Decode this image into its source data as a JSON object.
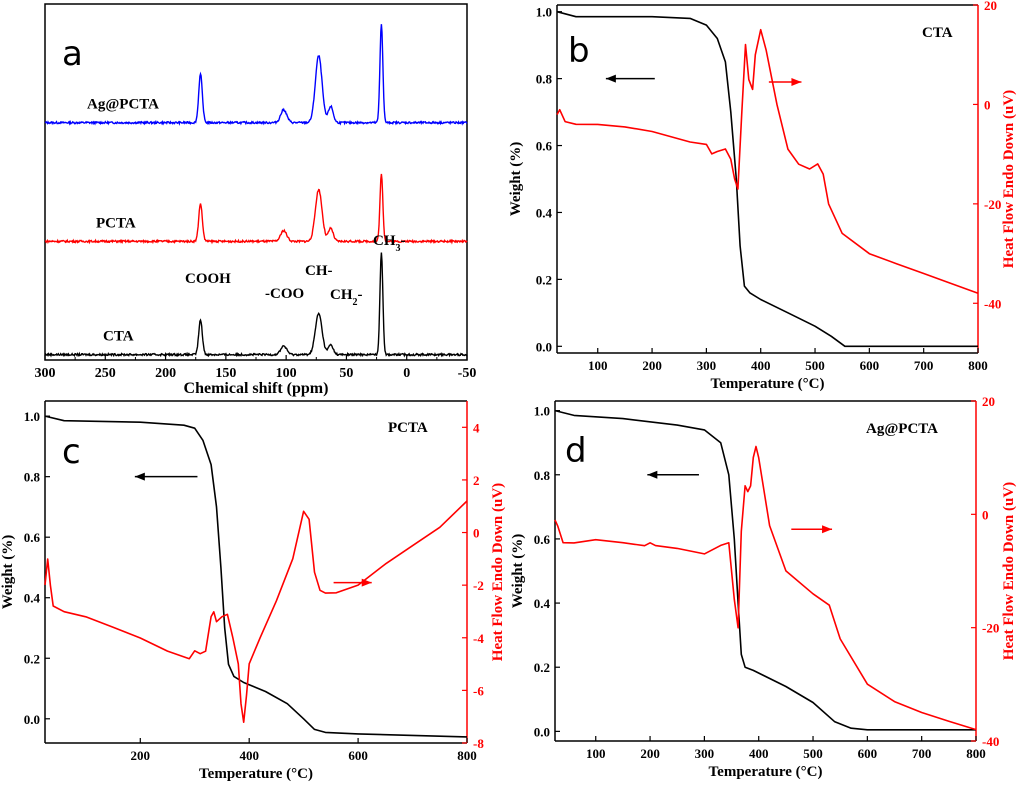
{
  "colors": {
    "black": "#000000",
    "red": "#ff0000",
    "blue": "#0000ff"
  },
  "chart_data": [
    {
      "id": "a",
      "type": "line",
      "title": "",
      "panel_letter": "a",
      "xlabel": "Chemical shift (ppm)",
      "ylabel": "",
      "xlim": [
        300,
        -50
      ],
      "x_reversed": true,
      "ylim": [
        0,
        3.3
      ],
      "xticks": [
        300,
        250,
        200,
        150,
        100,
        50,
        0,
        -50
      ],
      "tick_labels": [
        "300",
        "250",
        "200",
        "150",
        "100",
        "50",
        "0",
        "-50"
      ],
      "peaks_ppm": [
        171,
        102,
        73,
        63,
        21
      ],
      "series": [
        {
          "name": "Ag@PCTA",
          "color": "#0000ff",
          "offset": 2.2,
          "peak_heights": [
            0.45,
            0.12,
            0.62,
            0.15,
            0.92
          ]
        },
        {
          "name": "PCTA",
          "color": "#ff0000",
          "offset": 1.1,
          "peak_heights": [
            0.35,
            0.1,
            0.48,
            0.12,
            0.62
          ]
        },
        {
          "name": "CTA",
          "color": "#000000",
          "offset": 0.05,
          "peak_heights": [
            0.32,
            0.08,
            0.38,
            0.09,
            0.95
          ]
        }
      ],
      "annotations": [
        {
          "text": "COOH",
          "x": 171,
          "y": 1.0
        },
        {
          "text": "-COO",
          "x": 103,
          "y": 0.7
        },
        {
          "text": "CH-",
          "x": 73,
          "y": 1.2
        },
        {
          "text": "CH",
          "sub": "2",
          "suffix": "-",
          "x": 50,
          "y": 0.75
        },
        {
          "text": "CH",
          "sub": "3",
          "suffix": "-",
          "x": 21,
          "y": 1.55
        }
      ]
    },
    {
      "id": "b",
      "type": "line",
      "title": "CTA",
      "panel_letter": "b",
      "xlabel": "Temperature (°C)",
      "ylabel": "Weight (%)",
      "ylabel2": "Heat Flow Endo Down (uV)",
      "xlim": [
        25,
        800
      ],
      "xticks": [
        100,
        200,
        300,
        400,
        500,
        600,
        700,
        800
      ],
      "xtick_labels": [
        "100",
        "200",
        "300",
        "400",
        "500",
        "600",
        "700",
        "800"
      ],
      "ylim": [
        -0.02,
        1.02
      ],
      "yticks": [
        0.0,
        0.2,
        0.4,
        0.6,
        0.8,
        1.0
      ],
      "ytick_labels": [
        "0.0",
        "0.2",
        "0.4",
        "0.6",
        "0.8",
        "1.0"
      ],
      "y2lim": [
        -50,
        20
      ],
      "y2ticks": [
        -40,
        -20,
        0,
        20
      ],
      "y2tick_labels": [
        "-40",
        "-20",
        "0",
        "20"
      ],
      "series": [
        {
          "name": "Weight",
          "axis": "left",
          "color": "#000000",
          "x": [
            25,
            60,
            200,
            270,
            300,
            320,
            335,
            345,
            355,
            362,
            370,
            380,
            400,
            450,
            500,
            530,
            555,
            600,
            800
          ],
          "y": [
            1.0,
            0.985,
            0.985,
            0.98,
            0.96,
            0.92,
            0.85,
            0.7,
            0.5,
            0.3,
            0.18,
            0.16,
            0.14,
            0.1,
            0.06,
            0.03,
            0.0,
            0.0,
            0.0
          ]
        },
        {
          "name": "Heat Flow",
          "axis": "right",
          "color": "#ff0000",
          "x": [
            25,
            30,
            40,
            60,
            100,
            150,
            200,
            250,
            270,
            300,
            310,
            320,
            335,
            345,
            352,
            358,
            365,
            372,
            378,
            385,
            390,
            400,
            410,
            430,
            450,
            470,
            490,
            505,
            515,
            525,
            550,
            600,
            650,
            700,
            750,
            800
          ],
          "y": [
            -2,
            -1,
            -3.5,
            -4,
            -4,
            -4.5,
            -5.5,
            -7,
            -7.5,
            -8,
            -10,
            -9.5,
            -9,
            -11,
            -15,
            -17,
            -2,
            12,
            5,
            3,
            10,
            15,
            11,
            0,
            -9,
            -12,
            -13,
            -12,
            -14,
            -20,
            -26,
            -30,
            -32,
            -34,
            -36,
            -38
          ]
        }
      ],
      "arrows": [
        {
          "direction": "left",
          "color": "#000000",
          "x_from": 205,
          "x_to": 115,
          "y": 0.8
        },
        {
          "direction": "right",
          "color": "#ff0000",
          "x_from": 415,
          "x_to": 475,
          "y": 0.79
        }
      ]
    },
    {
      "id": "c",
      "type": "line",
      "title": "PCTA",
      "panel_letter": "c",
      "xlabel": "Temperature (°C)",
      "ylabel": "Weight (%)",
      "ylabel2": "Heat Flow Endo Down (uV)",
      "xlim": [
        25,
        800
      ],
      "xticks": [
        200,
        400,
        600,
        800
      ],
      "xtick_labels": [
        "200",
        "400",
        "600",
        "800"
      ],
      "ylim": [
        -0.08,
        1.05
      ],
      "yticks": [
        0.0,
        0.2,
        0.4,
        0.6,
        0.8,
        1.0
      ],
      "ytick_labels": [
        "0.0",
        "0.2",
        "0.4",
        "0.6",
        "0.8",
        "1.0"
      ],
      "y2lim": [
        -8,
        5
      ],
      "y2ticks": [
        -8,
        -6,
        -4,
        -2,
        0,
        2,
        4
      ],
      "y2tick_labels": [
        "-8",
        "-6",
        "-4",
        "-2",
        "0",
        "2",
        "4"
      ],
      "series": [
        {
          "name": "Weight",
          "axis": "left",
          "color": "#000000",
          "x": [
            25,
            60,
            200,
            280,
            300,
            315,
            330,
            340,
            348,
            355,
            362,
            372,
            390,
            430,
            470,
            500,
            520,
            540,
            600,
            700,
            800
          ],
          "y": [
            1.0,
            0.985,
            0.98,
            0.97,
            0.96,
            0.92,
            0.84,
            0.7,
            0.5,
            0.3,
            0.18,
            0.14,
            0.12,
            0.09,
            0.05,
            0.0,
            -0.035,
            -0.045,
            -0.05,
            -0.055,
            -0.06
          ]
        },
        {
          "name": "Heat Flow",
          "axis": "right",
          "color": "#ff0000",
          "x": [
            25,
            30,
            35,
            40,
            60,
            100,
            150,
            200,
            250,
            290,
            300,
            310,
            320,
            330,
            335,
            340,
            350,
            360,
            370,
            380,
            385,
            390,
            395,
            400,
            420,
            450,
            480,
            500,
            510,
            520,
            530,
            540,
            560,
            600,
            650,
            700,
            750,
            800
          ],
          "y": [
            -2,
            -1,
            -2,
            -2.8,
            -3,
            -3.2,
            -3.6,
            -4,
            -4.5,
            -4.8,
            -4.5,
            -4.6,
            -4.5,
            -3.2,
            -3.0,
            -3.4,
            -3.2,
            -3.1,
            -4,
            -5,
            -6.5,
            -7.2,
            -6.2,
            -5,
            -4,
            -2.6,
            -1,
            0.8,
            0.5,
            -1.5,
            -2.2,
            -2.3,
            -2.3,
            -2,
            -1.2,
            -0.5,
            0.2,
            1.2
          ]
        }
      ],
      "arrows": [
        {
          "direction": "left",
          "color": "#000000",
          "x_from": 305,
          "x_to": 190,
          "y": 0.8
        },
        {
          "direction": "right",
          "color": "#ff0000",
          "x_from": 555,
          "x_to": 625,
          "y": 0.45
        }
      ]
    },
    {
      "id": "d",
      "type": "line",
      "title": "Ag@PCTA",
      "panel_letter": "d",
      "xlabel": "Temperature (°C)",
      "ylabel": "Weight (%)",
      "ylabel2": "Heat Flow Endo Down (uV)",
      "xlim": [
        25,
        800
      ],
      "xticks": [
        100,
        200,
        300,
        400,
        500,
        600,
        700,
        800
      ],
      "xtick_labels": [
        "100",
        "200",
        "300",
        "400",
        "500",
        "600",
        "700",
        "800"
      ],
      "ylim": [
        -0.03,
        1.03
      ],
      "yticks": [
        0.0,
        0.2,
        0.4,
        0.6,
        0.8,
        1.0
      ],
      "ytick_labels": [
        "0.0",
        "0.2",
        "0.4",
        "0.6",
        "0.8",
        "1.0"
      ],
      "y2lim": [
        -40,
        20
      ],
      "y2ticks": [
        -40,
        -20,
        0,
        20
      ],
      "y2tick_labels": [
        "-40",
        "-20",
        "0",
        "20"
      ],
      "series": [
        {
          "name": "Weight",
          "axis": "left",
          "color": "#000000",
          "x": [
            25,
            60,
            150,
            250,
            300,
            330,
            345,
            355,
            362,
            368,
            375,
            390,
            450,
            500,
            540,
            570,
            600,
            800
          ],
          "y": [
            1.0,
            0.985,
            0.975,
            0.955,
            0.94,
            0.9,
            0.8,
            0.6,
            0.4,
            0.24,
            0.2,
            0.19,
            0.14,
            0.09,
            0.03,
            0.01,
            0.005,
            0.005
          ]
        },
        {
          "name": "Heat Flow",
          "axis": "right",
          "color": "#ff0000",
          "x": [
            25,
            30,
            40,
            60,
            100,
            150,
            190,
            200,
            210,
            250,
            300,
            330,
            345,
            355,
            362,
            368,
            375,
            380,
            385,
            390,
            395,
            400,
            420,
            450,
            500,
            530,
            550,
            600,
            650,
            700,
            750,
            800
          ],
          "y": [
            -1,
            -2,
            -5,
            -5,
            -4.5,
            -5,
            -5.5,
            -5,
            -5.5,
            -6,
            -7,
            -5.5,
            -5,
            -15,
            -20,
            -3,
            5,
            4,
            5,
            10,
            12,
            10,
            -2,
            -10,
            -14,
            -16,
            -22,
            -30,
            -33,
            -35,
            -36.5,
            -38
          ]
        }
      ],
      "arrows": [
        {
          "direction": "left",
          "color": "#000000",
          "x_from": 290,
          "x_to": 195,
          "y": 0.8
        },
        {
          "direction": "right",
          "color": "#ff0000",
          "x_from": 460,
          "x_to": 535,
          "y": 0.63
        }
      ]
    }
  ]
}
